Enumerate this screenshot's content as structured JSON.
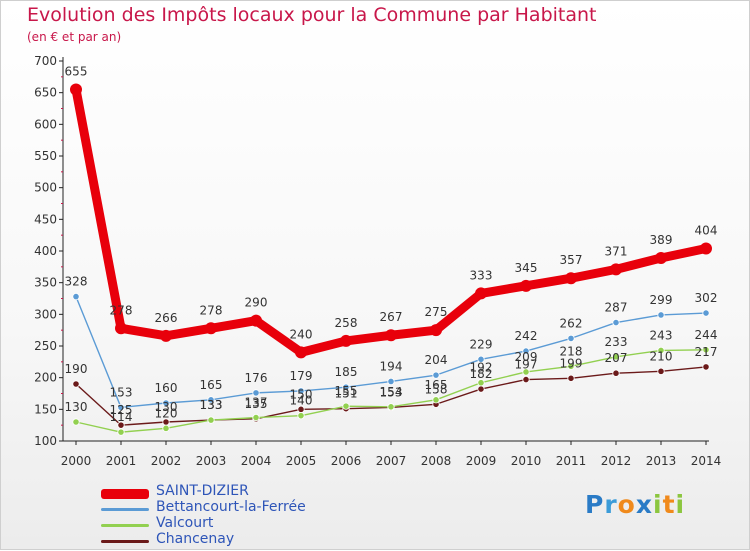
{
  "chart_data": {
    "type": "line",
    "title": "Evolution des Impôts locaux pour la Commune par Habitant",
    "subtitle": "(en € et par an)",
    "xlabel": "",
    "ylabel": "",
    "ylim": [
      100,
      700
    ],
    "y_ticks": [
      100,
      150,
      200,
      250,
      300,
      350,
      400,
      450,
      500,
      550,
      600,
      650,
      700
    ],
    "x": [
      "2000",
      "2001",
      "2002",
      "2003",
      "2004",
      "2005",
      "2006",
      "2007",
      "2008",
      "2009",
      "2010",
      "2011",
      "2012",
      "2013",
      "2014"
    ],
    "series": [
      {
        "name": "SAINT-DIZIER",
        "color": "#e8000b",
        "values": [
          655,
          278,
          266,
          278,
          290,
          240,
          258,
          267,
          275,
          333,
          345,
          357,
          371,
          389,
          404
        ]
      },
      {
        "name": "Bettancourt-la-Ferrée",
        "color": "#5b9bd5",
        "values": [
          328,
          153,
          160,
          165,
          176,
          179,
          185,
          194,
          204,
          229,
          242,
          262,
          287,
          299,
          302
        ]
      },
      {
        "name": "Valcourt",
        "color": "#92d050",
        "values": [
          130,
          114,
          120,
          133,
          137,
          140,
          155,
          154,
          165,
          192,
          209,
          218,
          233,
          243,
          244
        ]
      },
      {
        "name": "Chancenay",
        "color": "#6b1a1a",
        "values": [
          190,
          125,
          130,
          133,
          135,
          150,
          151,
          153,
          158,
          182,
          197,
          199,
          207,
          210,
          217
        ]
      }
    ],
    "legend_position": "bottom-left",
    "grid": false
  },
  "logo": {
    "text": "Proxiti",
    "letters": [
      {
        "ch": "P",
        "color": "#2a7bc6"
      },
      {
        "ch": "r",
        "color": "#3b9cd9"
      },
      {
        "ch": "o",
        "color": "#f08a1c"
      },
      {
        "ch": "x",
        "color": "#2a7bc6"
      },
      {
        "ch": "i",
        "color": "#8cc63f"
      },
      {
        "ch": "t",
        "color": "#f08a1c"
      },
      {
        "ch": "i",
        "color": "#8cc63f"
      }
    ]
  }
}
